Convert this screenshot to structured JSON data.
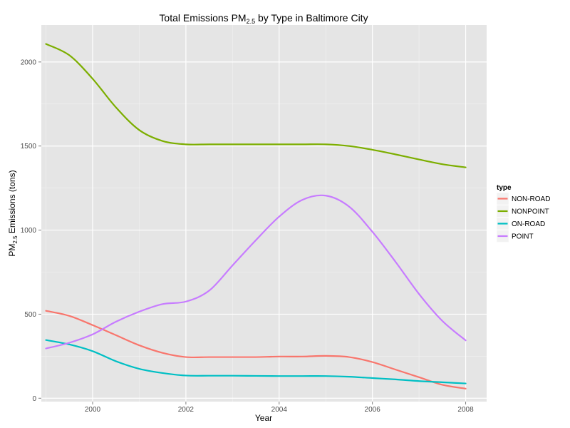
{
  "chart_data": {
    "type": "line",
    "title": {
      "pre": "Total Emissions  PM",
      "sub": "2.5",
      "post": "  by Type in Baltimore City"
    },
    "xlabel": "Year",
    "ylabel": {
      "pre": "PM",
      "sub": "2.5",
      "post": " Emissions (tons)"
    },
    "xlim": [
      1998.9,
      2008.45
    ],
    "ylim": [
      -20,
      2220
    ],
    "x_ticks": [
      2000,
      2002,
      2004,
      2006,
      2008
    ],
    "x_tick_labels": [
      "2000",
      "2002",
      "2004",
      "2006",
      "2008"
    ],
    "y_ticks": [
      0,
      500,
      1000,
      1500,
      2000
    ],
    "y_tick_labels": [
      "0",
      "500",
      "1000",
      "1500",
      "2000"
    ],
    "grid": true,
    "legend": {
      "title": "type",
      "placement": "right"
    },
    "x": [
      1999,
      1999.5,
      2000,
      2000.5,
      2001,
      2001.5,
      2002,
      2002.5,
      2003,
      2003.5,
      2004,
      2004.5,
      2005,
      2005.5,
      2006,
      2006.5,
      2007,
      2007.5,
      2008
    ],
    "series": [
      {
        "name": "NON-ROAD",
        "color": "#F8766D",
        "values": [
          520,
          490,
          435,
          375,
          315,
          270,
          245,
          245,
          245,
          245,
          248,
          248,
          252,
          245,
          215,
          170,
          125,
          80,
          57
        ]
      },
      {
        "name": "NONPOINT",
        "color": "#7CAE00",
        "values": [
          2107,
          2040,
          1900,
          1730,
          1595,
          1530,
          1510,
          1510,
          1510,
          1510,
          1510,
          1510,
          1510,
          1500,
          1478,
          1450,
          1420,
          1392,
          1373
        ]
      },
      {
        "name": "ON-ROAD",
        "color": "#00BFC4",
        "values": [
          346,
          320,
          280,
          220,
          175,
          150,
          135,
          134,
          134,
          133,
          132,
          132,
          132,
          128,
          120,
          112,
          102,
          95,
          88
        ]
      },
      {
        "name": "POINT",
        "color": "#C77CFF",
        "values": [
          296,
          330,
          380,
          455,
          515,
          560,
          575,
          640,
          790,
          940,
          1080,
          1180,
          1205,
          1140,
          990,
          810,
          620,
          460,
          344
        ]
      }
    ]
  }
}
